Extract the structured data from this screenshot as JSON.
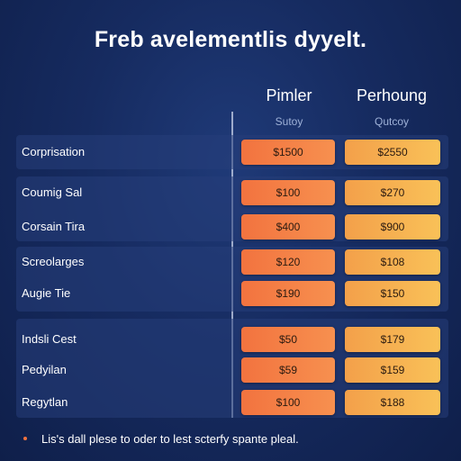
{
  "title": "Freb avelementlis dyyelt.",
  "columns": [
    {
      "label": "Pimler",
      "sub": "Sutoy"
    },
    {
      "label": "Perhoung",
      "sub": "Qutcoy"
    }
  ],
  "rows": [
    {
      "label": "Corprisation",
      "a": "$1500",
      "b": "$2550"
    },
    {
      "label": "Coumig Sal",
      "a": "$100",
      "b": "$270"
    },
    {
      "label": "Corsain Tira",
      "a": "$400",
      "b": "$900"
    },
    {
      "label": "Screolarges",
      "a": "$120",
      "b": "$108"
    },
    {
      "label": "Augie Tie",
      "a": "$190",
      "b": "$150"
    },
    {
      "label": "Indsli Cest",
      "a": "$50",
      "b": "$179"
    },
    {
      "label": "Pedyilan",
      "a": "$59",
      "b": "$159"
    },
    {
      "label": "Regytlan",
      "a": "$100",
      "b": "$188"
    }
  ],
  "footnote": "Lis's dall plese to oder to lest scterfy spante pleal.",
  "colors": {
    "background": "#162b60",
    "accent_a": "#f2733f",
    "accent_b": "#f9c158"
  }
}
